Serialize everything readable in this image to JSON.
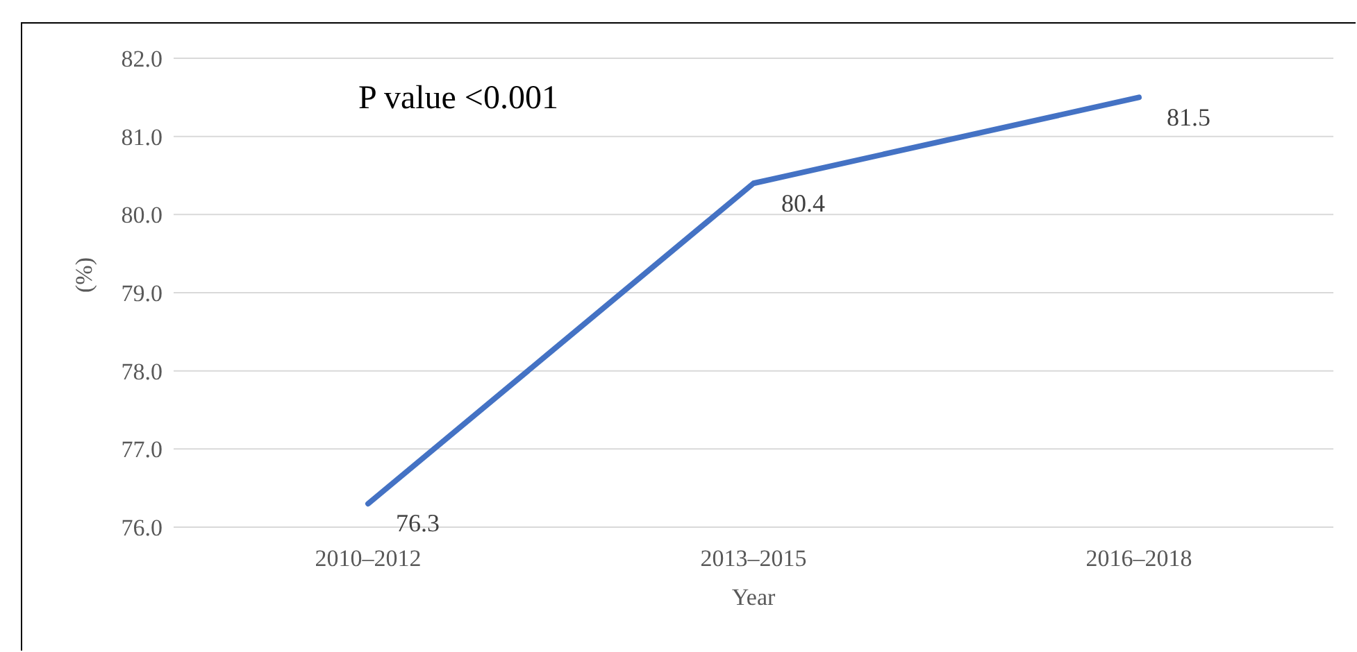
{
  "chart_data": {
    "type": "line",
    "categories": [
      "2010–2012",
      "2013–2015",
      "2016–2018"
    ],
    "series": [
      {
        "color": "#4472c4",
        "values": [
          76.3,
          80.4,
          81.5
        ]
      }
    ],
    "ylim": [
      76,
      82
    ],
    "yticks": [
      {
        "value": 76,
        "label": "76.0"
      },
      {
        "value": 77,
        "label": "77.0"
      },
      {
        "value": 78,
        "label": "78.0"
      },
      {
        "value": 79,
        "label": "79.0"
      },
      {
        "value": 80,
        "label": "80.0"
      },
      {
        "value": 81,
        "label": "81.0"
      },
      {
        "value": 82,
        "label": "82.0"
      }
    ],
    "xlabel": "Year",
    "ylabel": "(%)",
    "grid": "y",
    "data_labels": true,
    "marker": "none",
    "line_style": "solid",
    "legend": false,
    "annotations": [
      "P value <0.001"
    ]
  }
}
